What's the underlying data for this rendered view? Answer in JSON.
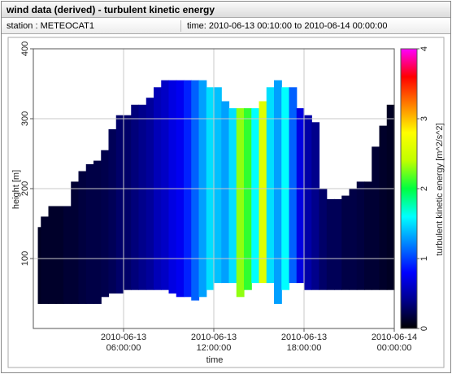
{
  "header": {
    "title": "wind data (derived) - turbulent kinetic energy",
    "station": "station : METEOCAT1",
    "time": "time: 2010-06-13 00:10:00 to 2010-06-14 00:00:00"
  },
  "chart_data": {
    "type": "heatmap",
    "x_label": "time",
    "y_label": "height [m]",
    "colorbar_label": "turbulent kinetic energy [m^2/s^2]",
    "xlim": [
      0,
      24
    ],
    "xticks": [
      {
        "value": 6,
        "label": "2010-06-13\n06:00:00"
      },
      {
        "value": 12,
        "label": "2010-06-13\n12:00:00"
      },
      {
        "value": 18,
        "label": "2010-06-13\n18:00:00"
      },
      {
        "value": 24,
        "label": "2010-06-14\n00:00:00"
      }
    ],
    "ylim": [
      0,
      400
    ],
    "yticks": [
      100,
      200,
      300,
      400
    ],
    "clim": [
      0,
      4
    ],
    "cticks": [
      0,
      1,
      2,
      3,
      4
    ],
    "colormap": [
      "#000000",
      "#00008b",
      "#0000ff",
      "#0080ff",
      "#00ffff",
      "#00ff40",
      "#c0ff00",
      "#ffff00",
      "#ff8000",
      "#ff0000",
      "#ff00ff"
    ],
    "grid": true,
    "x": [
      0.3,
      0.5,
      1,
      1.5,
      2,
      2.5,
      3,
      3.5,
      4,
      4.5,
      5,
      5.5,
      6,
      6.5,
      7,
      7.5,
      8,
      8.5,
      9,
      9.5,
      10,
      10.5,
      11,
      11.5,
      12,
      12.5,
      13,
      13.5,
      14,
      14.5,
      15,
      15.5,
      16,
      16.5,
      17,
      17.5,
      18,
      18.5,
      19,
      19.5,
      20,
      20.5,
      21,
      21.5,
      22,
      22.5,
      23,
      23.5
    ],
    "bottom": [
      35,
      35,
      35,
      35,
      35,
      35,
      35,
      35,
      35,
      45,
      50,
      50,
      55,
      55,
      55,
      55,
      55,
      55,
      50,
      45,
      45,
      40,
      45,
      55,
      65,
      65,
      65,
      45,
      55,
      65,
      65,
      65,
      35,
      55,
      65,
      65,
      55,
      55,
      55,
      55,
      55,
      55,
      55,
      55,
      55,
      55,
      55,
      55
    ],
    "top": [
      145,
      160,
      175,
      175,
      175,
      210,
      225,
      235,
      240,
      255,
      285,
      305,
      305,
      320,
      320,
      330,
      345,
      355,
      355,
      355,
      355,
      355,
      355,
      345,
      345,
      325,
      315,
      315,
      315,
      315,
      325,
      345,
      355,
      345,
      345,
      315,
      305,
      295,
      200,
      185,
      185,
      190,
      200,
      210,
      210,
      260,
      290,
      320
    ],
    "values": [
      0.1,
      0.12,
      0.12,
      0.12,
      0.15,
      0.15,
      0.18,
      0.2,
      0.2,
      0.22,
      0.25,
      0.3,
      0.3,
      0.35,
      0.4,
      0.45,
      0.55,
      0.6,
      0.7,
      0.75,
      0.9,
      1.1,
      1.3,
      1.5,
      1.4,
      1.3,
      1.5,
      2.3,
      2.1,
      1.6,
      2.6,
      1.5,
      1.3,
      1.6,
      1.1,
      0.7,
      0.5,
      0.4,
      0.3,
      0.25,
      0.25,
      0.2,
      0.2,
      0.18,
      0.15,
      0.15,
      0.12,
      0.1
    ]
  }
}
